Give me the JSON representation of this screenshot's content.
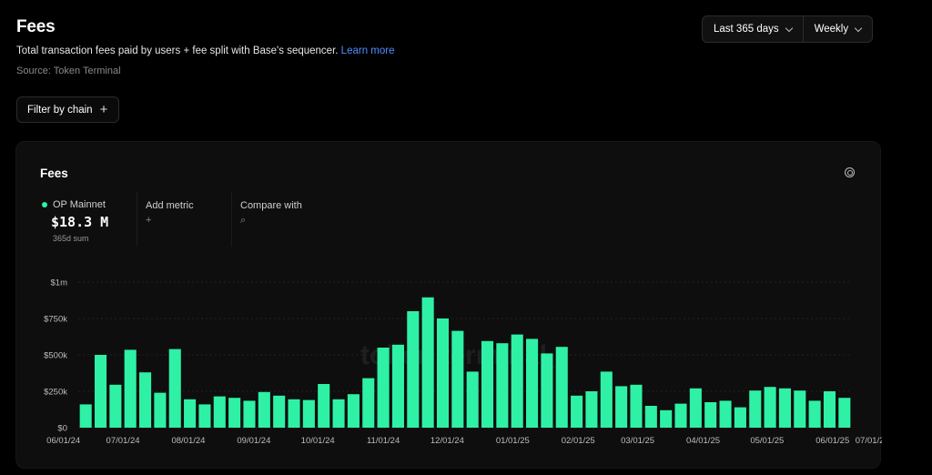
{
  "header": {
    "title": "Fees",
    "subtitle": "Total transaction fees paid by users + fee split with Base's sequencer.",
    "learn_more": "Learn more",
    "source": "Source: Token Terminal"
  },
  "filter": {
    "label": "Filter by chain",
    "icon": "plus-icon"
  },
  "controls": {
    "range_label": "Last 365 days",
    "interval_label": "Weekly"
  },
  "card": {
    "title": "Fees",
    "metric": {
      "name": "OP Mainnet",
      "value": "$18.3 M",
      "sub": "365d sum",
      "color": "#2ef1a5"
    },
    "add_metric": {
      "label": "Add metric",
      "symbol": "+"
    },
    "compare": {
      "label": "Compare with",
      "symbol": "⌕"
    },
    "watermark": "token terminal_"
  },
  "chart_data": {
    "type": "bar",
    "color": "#2ef1a5",
    "ylim": [
      0,
      1000000
    ],
    "y_ticks": [
      {
        "value": 0,
        "label": "$0"
      },
      {
        "value": 250000,
        "label": "$250k"
      },
      {
        "value": 500000,
        "label": "$500k"
      },
      {
        "value": 750000,
        "label": "$750k"
      },
      {
        "value": 1000000,
        "label": "$1m"
      }
    ],
    "x_ticks": [
      {
        "index": -1.5,
        "label": "06/01/24"
      },
      {
        "index": 2.5,
        "label": "07/01/24"
      },
      {
        "index": 6.9,
        "label": "08/01/24"
      },
      {
        "index": 11.3,
        "label": "09/01/24"
      },
      {
        "index": 15.6,
        "label": "10/01/24"
      },
      {
        "index": 20,
        "label": "11/01/24"
      },
      {
        "index": 24.3,
        "label": "12/01/24"
      },
      {
        "index": 28.7,
        "label": "01/01/25"
      },
      {
        "index": 33.1,
        "label": "02/01/25"
      },
      {
        "index": 37.1,
        "label": "03/01/25"
      },
      {
        "index": 41.5,
        "label": "04/01/25"
      },
      {
        "index": 45.8,
        "label": "05/01/25"
      },
      {
        "index": 50.2,
        "label": "06/01/25"
      },
      {
        "index": 52.7,
        "label": "07/01/2"
      }
    ],
    "values": [
      160000,
      500000,
      295000,
      535000,
      380000,
      240000,
      540000,
      195000,
      160000,
      215000,
      205000,
      185000,
      245000,
      220000,
      195000,
      190000,
      300000,
      195000,
      230000,
      340000,
      550000,
      570000,
      800000,
      895000,
      750000,
      665000,
      385000,
      595000,
      580000,
      640000,
      610000,
      510000,
      555000,
      220000,
      250000,
      385000,
      285000,
      295000,
      150000,
      120000,
      165000,
      270000,
      175000,
      185000,
      140000,
      255000,
      280000,
      270000,
      255000,
      185000,
      250000,
      205000
    ]
  }
}
